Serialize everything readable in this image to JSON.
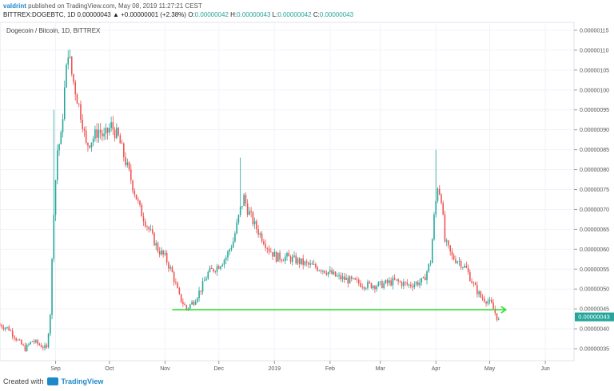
{
  "header": {
    "author": "valdrint",
    "published": "published on TradingView.com, May 08, 2019 11:27:21 CEST",
    "symbol": "BITTREX:DOGEBTC, 1D",
    "open_label": "O:",
    "open": "0.00000042",
    "high_label": "H:",
    "high": "0.00000043",
    "low_label": "L:",
    "low": "0.00000042",
    "close_label": "C:",
    "close": "0.00000043",
    "change": "0.00000043 ▲ +0.00000001 (+2.38%)"
  },
  "footer": {
    "created_with": "Created with",
    "brand": "TradingView"
  },
  "chart_data": {
    "type": "candlestick",
    "title": "Dogecoin / Bitcoin, 1D, BITTREX",
    "price_label": "0.00000043",
    "y_ticks": [
      "0.00000035",
      "0.00000040",
      "0.00000045",
      "0.00000050",
      "0.00000055",
      "0.00000060",
      "0.00000065",
      "0.00000070",
      "0.00000075",
      "0.00000080",
      "0.00000085",
      "0.00000090",
      "0.00000095",
      "0.00000100",
      "0.00000105",
      "0.00000110",
      "0.00000115"
    ],
    "y_tick_values": [
      35,
      40,
      45,
      50,
      55,
      60,
      65,
      70,
      75,
      80,
      85,
      90,
      95,
      100,
      105,
      110,
      115
    ],
    "ylim": [
      32,
      117
    ],
    "x_tick_labels": [
      "Sep",
      "Oct",
      "Nov",
      "Dec",
      "2019",
      "Feb",
      "Mar",
      "Apr",
      "May",
      "Jun"
    ],
    "x_tick_days": [
      31,
      61,
      92,
      122,
      153,
      184,
      212,
      243,
      273,
      304
    ],
    "xlim": [
      0,
      320
    ],
    "support_level": 44.8,
    "support_start_day": 96,
    "support_end_day": 282,
    "colors": {
      "up": "#26a69a",
      "down": "#ef5350",
      "support": "#33e033",
      "price_tag": "#26a69a"
    },
    "anchors": [
      [
        0,
        41
      ],
      [
        5,
        40
      ],
      [
        10,
        37
      ],
      [
        14,
        35
      ],
      [
        18,
        37
      ],
      [
        22,
        36
      ],
      [
        26,
        35
      ],
      [
        28,
        44
      ],
      [
        30,
        70
      ],
      [
        32,
        85
      ],
      [
        34,
        88
      ],
      [
        36,
        100
      ],
      [
        38,
        110
      ],
      [
        40,
        104
      ],
      [
        44,
        96
      ],
      [
        46,
        92
      ],
      [
        48,
        86
      ],
      [
        52,
        88
      ],
      [
        55,
        90
      ],
      [
        58,
        88
      ],
      [
        62,
        91
      ],
      [
        66,
        88
      ],
      [
        70,
        82
      ],
      [
        74,
        76
      ],
      [
        78,
        70
      ],
      [
        82,
        66
      ],
      [
        86,
        62
      ],
      [
        88,
        60
      ],
      [
        92,
        58
      ],
      [
        96,
        54
      ],
      [
        100,
        48
      ],
      [
        104,
        45
      ],
      [
        108,
        47
      ],
      [
        112,
        50
      ],
      [
        116,
        54
      ],
      [
        122,
        56
      ],
      [
        126,
        58
      ],
      [
        130,
        62
      ],
      [
        134,
        70
      ],
      [
        136,
        73
      ],
      [
        138,
        70
      ],
      [
        142,
        66
      ],
      [
        146,
        63
      ],
      [
        150,
        60
      ],
      [
        154,
        58
      ],
      [
        160,
        58
      ],
      [
        166,
        57
      ],
      [
        172,
        56
      ],
      [
        180,
        55
      ],
      [
        188,
        53
      ],
      [
        196,
        52
      ],
      [
        204,
        51
      ],
      [
        212,
        51
      ],
      [
        220,
        52
      ],
      [
        228,
        51
      ],
      [
        236,
        52
      ],
      [
        240,
        57
      ],
      [
        242,
        68
      ],
      [
        244,
        76
      ],
      [
        246,
        73
      ],
      [
        248,
        62
      ],
      [
        252,
        58
      ],
      [
        256,
        57
      ],
      [
        260,
        55
      ],
      [
        264,
        51
      ],
      [
        268,
        48
      ],
      [
        272,
        47
      ],
      [
        274,
        46
      ],
      [
        276,
        44
      ],
      [
        278,
        42
      ]
    ],
    "spikes": [
      [
        134,
        83
      ],
      [
        243,
        85
      ],
      [
        38,
        110
      ],
      [
        30,
        95
      ]
    ]
  }
}
